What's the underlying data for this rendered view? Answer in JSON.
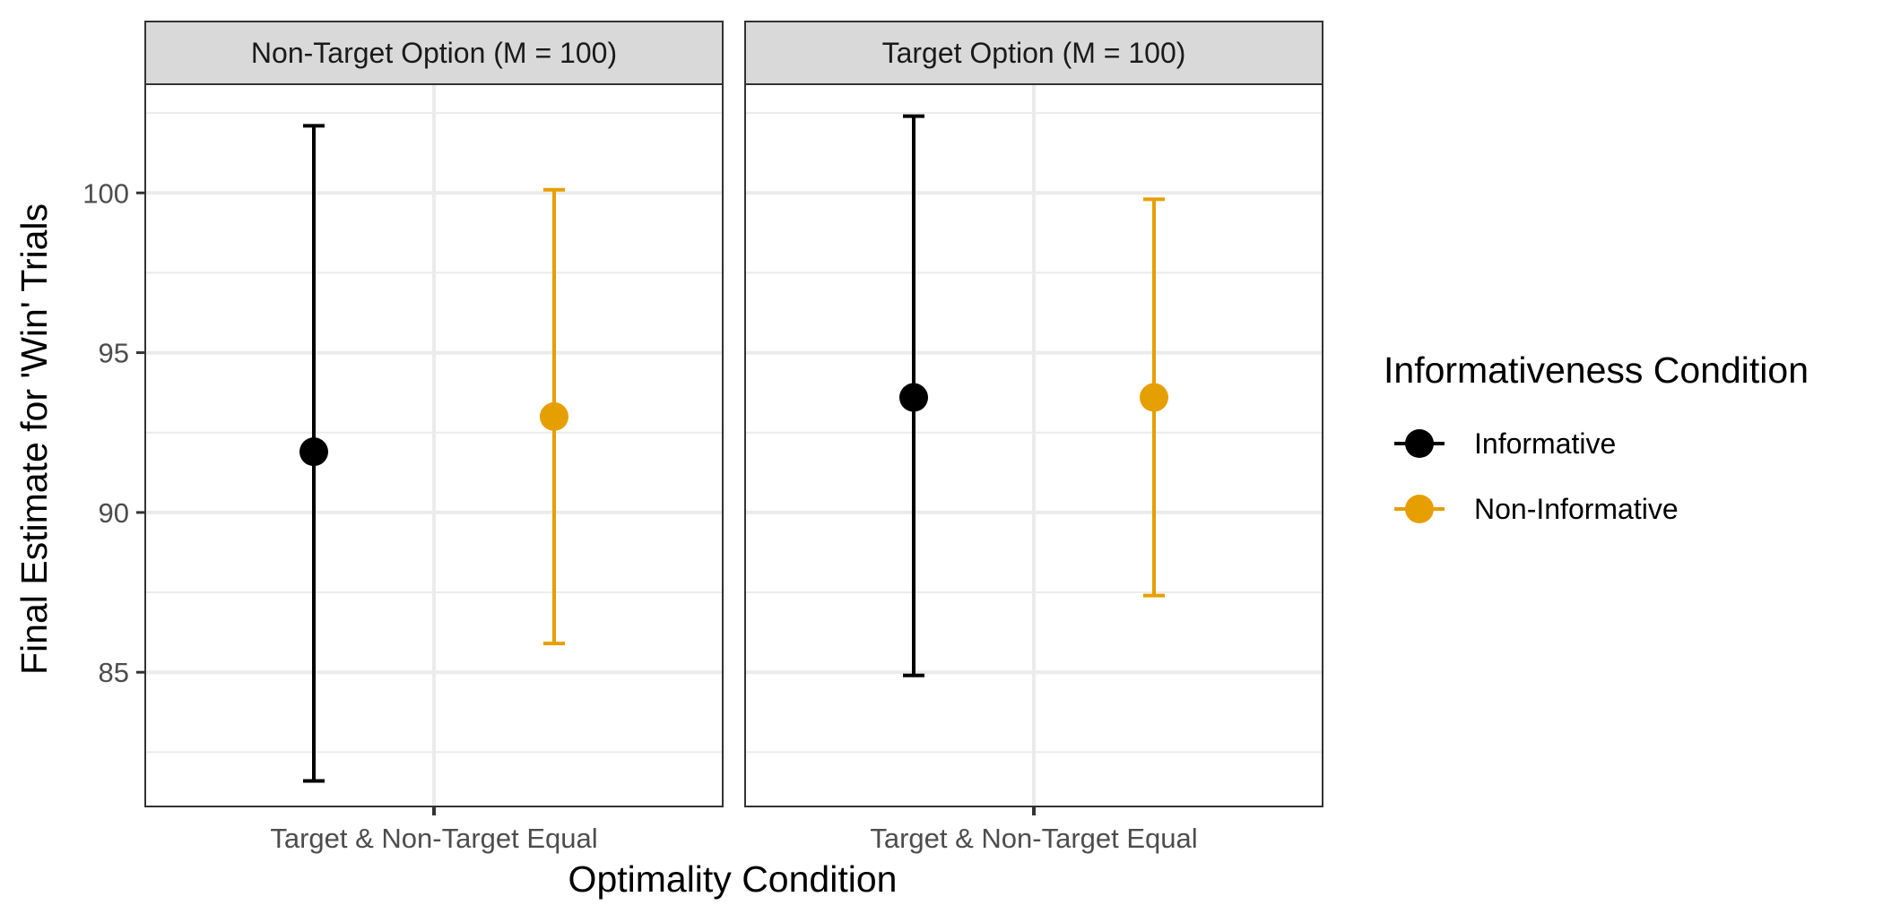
{
  "chart_data": {
    "type": "scatter",
    "subtype": "point-with-errorbars, faceted",
    "xlabel": "Optimality Condition",
    "ylabel": "Final Estimate for 'Win' Trials",
    "ylim": [
      80.8,
      103.4
    ],
    "yticks": [
      85,
      90,
      95,
      100
    ],
    "grid": true,
    "categories": [
      "Target & Non-Target Equal"
    ],
    "legend": {
      "title": "Informativeness Condition",
      "position": "right",
      "entries": [
        {
          "name": "Informative",
          "color": "#000000"
        },
        {
          "name": "Non-Informative",
          "color": "#E69F00"
        }
      ]
    },
    "facets": [
      {
        "label": "Non-Target Option (M = 100)",
        "series": [
          {
            "name": "Informative",
            "category": "Target & Non-Target Equal",
            "mean": 91.9,
            "lower": 81.6,
            "upper": 102.1
          },
          {
            "name": "Non-Informative",
            "category": "Target & Non-Target Equal",
            "mean": 93.0,
            "lower": 85.9,
            "upper": 100.1
          }
        ]
      },
      {
        "label": "Target Option (M = 100)",
        "series": [
          {
            "name": "Informative",
            "category": "Target & Non-Target Equal",
            "mean": 93.6,
            "lower": 84.9,
            "upper": 102.4
          },
          {
            "name": "Non-Informative",
            "category": "Target & Non-Target Equal",
            "mean": 93.6,
            "lower": 87.4,
            "upper": 99.8
          }
        ]
      }
    ]
  }
}
